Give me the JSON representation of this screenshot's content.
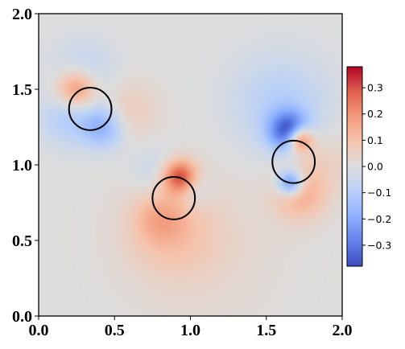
{
  "chart_data": {
    "type": "heatmap",
    "title": "",
    "xlabel": "",
    "ylabel": "",
    "xlim": [
      0.0,
      2.0
    ],
    "ylim": [
      0.0,
      2.0
    ],
    "x_ticks": [
      0.0,
      0.5,
      1.0,
      1.5,
      2.0
    ],
    "y_ticks": [
      0.0,
      0.5,
      1.0,
      1.5,
      2.0
    ],
    "x_tick_labels": [
      "0.0",
      "0.5",
      "1.0",
      "1.5",
      "2.0"
    ],
    "y_tick_labels": [
      "0.0",
      "0.5",
      "1.0",
      "1.5",
      "2.0"
    ],
    "grid": false,
    "colormap": "coolwarm",
    "colorbar": {
      "placement": "right",
      "range": [
        -0.38,
        0.38
      ],
      "ticks": [
        0.3,
        0.2,
        0.1,
        0.0,
        -0.1,
        -0.2,
        -0.3
      ],
      "tick_labels": [
        "0.3",
        "0.2",
        "0.1",
        "0.0",
        "−0.1",
        "−0.2",
        "−0.3"
      ]
    },
    "circles": [
      {
        "cx": 0.34,
        "cy": 1.37,
        "r": 0.14
      },
      {
        "cx": 0.89,
        "cy": 0.78,
        "r": 0.14
      },
      {
        "cx": 1.68,
        "cy": 1.02,
        "r": 0.14
      }
    ],
    "field_features": [
      {
        "x": 0.25,
        "y": 1.5,
        "value": 0.22,
        "spread": 0.09
      },
      {
        "x": 0.42,
        "y": 1.25,
        "value": -0.18,
        "spread": 0.1
      },
      {
        "x": 0.18,
        "y": 1.3,
        "value": -0.1,
        "spread": 0.12
      },
      {
        "x": 0.6,
        "y": 1.36,
        "value": 0.07,
        "spread": 0.13
      },
      {
        "x": 0.3,
        "y": 1.62,
        "value": -0.07,
        "spread": 0.14
      },
      {
        "x": 0.93,
        "y": 0.92,
        "value": 0.32,
        "spread": 0.08
      },
      {
        "x": 0.8,
        "y": 0.65,
        "value": 0.1,
        "spread": 0.12
      },
      {
        "x": 0.78,
        "y": 0.95,
        "value": -0.06,
        "spread": 0.12
      },
      {
        "x": 1.02,
        "y": 0.84,
        "value": -0.08,
        "spread": 0.08
      },
      {
        "x": 0.88,
        "y": 0.55,
        "value": 0.08,
        "spread": 0.22
      },
      {
        "x": 1.72,
        "y": 1.17,
        "value": 0.36,
        "spread": 0.06
      },
      {
        "x": 1.65,
        "y": 1.22,
        "value": -0.35,
        "spread": 0.09
      },
      {
        "x": 1.66,
        "y": 0.88,
        "value": -0.3,
        "spread": 0.06
      },
      {
        "x": 1.72,
        "y": 0.8,
        "value": 0.14,
        "spread": 0.12
      },
      {
        "x": 1.6,
        "y": 1.4,
        "value": -0.1,
        "spread": 0.22
      },
      {
        "x": 1.85,
        "y": 1.02,
        "value": 0.06,
        "spread": 0.15
      },
      {
        "x": 1.1,
        "y": 0.45,
        "value": 0.03,
        "spread": 0.35
      }
    ]
  }
}
